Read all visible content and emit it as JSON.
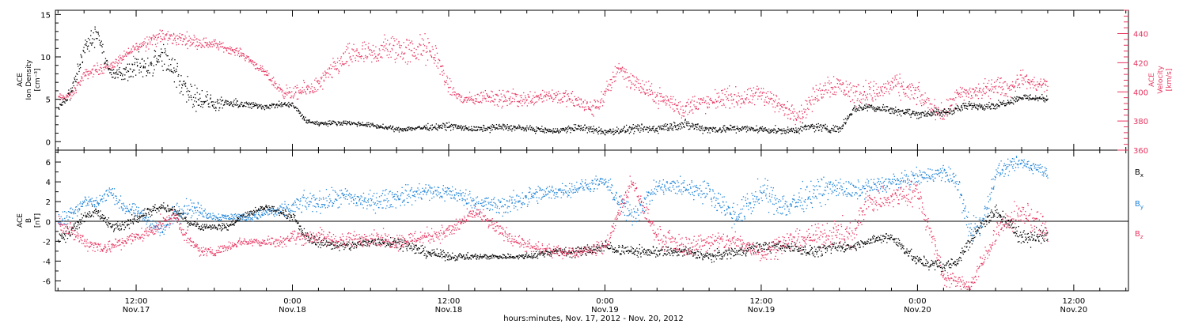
{
  "colors": {
    "black": "#000000",
    "pink": "#e8345f",
    "blue": "#1d83d8"
  },
  "xaxis": {
    "caption": "hours:minutes, Nov. 17, 2012 - Nov. 20, 2012",
    "ticks": [
      {
        "time": "12:00",
        "date": "Nov.17",
        "hours": 12
      },
      {
        "time": "0:00",
        "date": "Nov.18",
        "hours": 24
      },
      {
        "time": "12:00",
        "date": "Nov.18",
        "hours": 36
      },
      {
        "time": "0:00",
        "date": "Nov.19",
        "hours": 48
      },
      {
        "time": "12:00",
        "date": "Nov.19",
        "hours": 60
      },
      {
        "time": "0:00",
        "date": "Nov.20",
        "hours": 72
      },
      {
        "time": "12:00",
        "date": "Nov.20",
        "hours": 84
      }
    ]
  },
  "chart_data": [
    {
      "type": "scatter",
      "panel": "top",
      "xlim_hours": [
        5.8,
        88.2
      ],
      "ylabel_left": [
        "ACE",
        "Ion Density",
        "[cm⁻³]"
      ],
      "ylabel_right": [
        "ACE",
        "Velocity",
        "[km/s]"
      ],
      "left_axis": {
        "ylim": [
          -1,
          15.5
        ],
        "ticks": [
          0,
          5,
          10,
          15
        ]
      },
      "right_axis": {
        "ylim": [
          360,
          456
        ],
        "ticks": [
          360,
          380,
          400,
          420,
          440
        ]
      },
      "series": [
        {
          "name": "",
          "color": "black",
          "axis": "left",
          "x": [
            6,
            7,
            8,
            9,
            10,
            11,
            12,
            13,
            14,
            15,
            16,
            17,
            18,
            19,
            20,
            21,
            22,
            23,
            24,
            25,
            26,
            28,
            30,
            32,
            34,
            36,
            38,
            40,
            42,
            44,
            46,
            48,
            50,
            52,
            54,
            56,
            58,
            60,
            62,
            64,
            66,
            67,
            68,
            70,
            72,
            74,
            76,
            78,
            80,
            82
          ],
          "y": [
            4,
            6,
            11,
            13,
            8,
            8,
            9,
            9,
            10,
            8,
            6,
            5,
            4.5,
            4.5,
            4.5,
            4.3,
            4.2,
            4.4,
            4.4,
            2.5,
            2.2,
            2.3,
            2,
            1.5,
            1.7,
            1.9,
            1.5,
            1.8,
            1.6,
            1.3,
            1.7,
            1.2,
            1.5,
            1.6,
            2.1,
            1.5,
            1.6,
            1.5,
            1.3,
            1.8,
            1.5,
            3.8,
            4.2,
            3.8,
            3.3,
            3.5,
            4.3,
            4.3,
            5.3,
            5.1
          ],
          "spread": [
            0.6,
            1.2,
            2,
            1.5,
            1.2,
            1.5,
            2,
            2.2,
            2.5,
            3,
            2.5,
            2,
            1.2,
            0.8,
            0.7,
            0.6,
            0.5,
            0.5,
            0.5,
            0.5,
            0.4,
            0.4,
            0.4,
            0.4,
            0.5,
            0.6,
            0.5,
            0.6,
            0.5,
            0.5,
            0.7,
            0.6,
            0.7,
            0.8,
            0.9,
            0.7,
            0.7,
            0.6,
            0.6,
            0.8,
            0.6,
            0.6,
            0.7,
            0.7,
            0.7,
            0.7,
            0.7,
            0.6,
            0.6,
            0.6
          ]
        },
        {
          "name": "",
          "color": "pink",
          "axis": "right",
          "x": [
            6,
            7,
            8,
            9,
            10,
            11,
            12,
            13,
            14,
            15,
            16,
            17,
            18,
            19,
            20,
            21,
            22,
            23,
            24,
            25,
            26,
            27,
            28,
            29,
            30,
            31,
            32,
            33,
            34,
            35,
            36,
            37,
            38,
            39,
            40,
            41,
            42,
            43,
            44,
            45,
            46,
            47,
            48,
            49,
            50,
            51,
            52,
            53,
            54,
            55,
            56,
            57,
            58,
            59,
            60,
            61,
            62,
            63,
            64,
            65,
            66,
            67,
            68,
            69,
            70,
            71,
            72,
            73,
            74,
            75,
            76,
            77,
            78,
            79,
            80,
            81,
            82
          ],
          "y": [
            396,
            398,
            412,
            416,
            418,
            424,
            431,
            436,
            438,
            437,
            436,
            434,
            433,
            430,
            427,
            420,
            412,
            402,
            398,
            402,
            405,
            415,
            423,
            427,
            425,
            430,
            430,
            428,
            430,
            425,
            403,
            395,
            395,
            398,
            395,
            396,
            395,
            398,
            398,
            396,
            393,
            388,
            398,
            418,
            408,
            402,
            397,
            393,
            388,
            393,
            392,
            397,
            396,
            395,
            400,
            393,
            387,
            385,
            396,
            405,
            405,
            399,
            400,
            400,
            405,
            402,
            398,
            390,
            385,
            397,
            400,
            401,
            405,
            402,
            410,
            405,
            405
          ],
          "spread": [
            4,
            4,
            5,
            6,
            5,
            5,
            6,
            8,
            8,
            7,
            7,
            6,
            5,
            4,
            4,
            4,
            4,
            6,
            8,
            8,
            9,
            10,
            12,
            14,
            12,
            14,
            16,
            14,
            16,
            12,
            8,
            6,
            6,
            8,
            8,
            9,
            8,
            8,
            8,
            8,
            9,
            8,
            10,
            10,
            10,
            9,
            9,
            10,
            10,
            10,
            9,
            10,
            10,
            10,
            10,
            11,
            9,
            9,
            11,
            12,
            12,
            12,
            12,
            11,
            11,
            12,
            11,
            9,
            9,
            10,
            10,
            10,
            9,
            9,
            8,
            8,
            8
          ]
        }
      ]
    },
    {
      "type": "scatter",
      "panel": "bottom",
      "xlim_hours": [
        5.8,
        88.2
      ],
      "ylabel_left": [
        "ACE",
        "B",
        "[nT]"
      ],
      "ylim": [
        -7,
        7.2
      ],
      "ticks": [
        -6,
        -4,
        -2,
        0,
        2,
        4,
        6
      ],
      "legend": [
        "Bx",
        "By",
        "Bz"
      ],
      "legend_position": "right",
      "series": [
        {
          "name": "Bx",
          "color": "black",
          "x": [
            6,
            7,
            8,
            9,
            10,
            11,
            12,
            13,
            14,
            15,
            16,
            17,
            18,
            19,
            20,
            21,
            22,
            23,
            24,
            25,
            26,
            28,
            30,
            32,
            34,
            36,
            38,
            40,
            42,
            44,
            46,
            48,
            50,
            52,
            54,
            56,
            58,
            60,
            62,
            64,
            66,
            67,
            68,
            70,
            72,
            74,
            75,
            76,
            77,
            78,
            80,
            82
          ],
          "y": [
            -1.5,
            -1,
            0.5,
            1,
            -0.5,
            -0.5,
            0.5,
            1,
            1.5,
            1,
            0,
            -0.5,
            -0.5,
            -0.5,
            0.5,
            1,
            1.5,
            1,
            0.5,
            -1.5,
            -2,
            -2.5,
            -2,
            -2,
            -3,
            -3.5,
            -3.5,
            -3.5,
            -3.5,
            -3,
            -3,
            -2.5,
            -3,
            -3,
            -3,
            -3.5,
            -3,
            -2.5,
            -2.5,
            -3,
            -2.5,
            -2.5,
            -2,
            -1.5,
            -4,
            -4.5,
            -4,
            -2,
            0,
            1,
            -1.5,
            -1.5
          ],
          "spread": [
            1,
            1,
            1,
            0.8,
            0.8,
            0.8,
            0.8,
            0.8,
            0.6,
            0.6,
            0.6,
            0.5,
            0.5,
            0.5,
            0.5,
            0.5,
            0.5,
            0.5,
            0.6,
            0.8,
            0.8,
            0.8,
            0.8,
            0.8,
            0.8,
            0.6,
            0.4,
            0.4,
            0.5,
            0.6,
            0.8,
            0.8,
            0.8,
            0.8,
            0.8,
            0.8,
            0.8,
            0.8,
            0.8,
            0.8,
            0.8,
            0.6,
            0.6,
            0.8,
            0.8,
            0.8,
            0.8,
            1,
            1,
            1,
            1.2,
            1.2
          ]
        },
        {
          "name": "By",
          "color": "blue",
          "x": [
            6,
            7,
            8,
            9,
            10,
            11,
            12,
            13,
            14,
            15,
            16,
            17,
            18,
            19,
            20,
            21,
            22,
            23,
            24,
            25,
            26,
            28,
            30,
            32,
            34,
            36,
            38,
            40,
            42,
            44,
            46,
            48,
            50,
            52,
            54,
            56,
            58,
            60,
            62,
            64,
            66,
            67,
            68,
            70,
            72,
            74,
            75,
            76,
            77,
            78,
            80,
            82
          ],
          "y": [
            0,
            1,
            2,
            2,
            3,
            1.5,
            1,
            0,
            -1,
            1,
            1.5,
            1,
            0.5,
            0.5,
            0.5,
            0.5,
            1,
            1,
            1.5,
            2,
            2,
            2.5,
            2,
            2.5,
            3,
            3,
            2,
            1.5,
            2.5,
            3,
            3.5,
            4,
            0.5,
            3.5,
            3.5,
            3,
            0.5,
            3,
            1.5,
            3,
            3.5,
            3,
            3.5,
            4,
            4.5,
            5,
            4,
            -1,
            0,
            5,
            6,
            5
          ],
          "spread": [
            1.2,
            1.2,
            1,
            1.2,
            1,
            1,
            1,
            1,
            1,
            1.5,
            1.5,
            1,
            0.6,
            0.6,
            0.6,
            0.6,
            0.8,
            1,
            1.2,
            1.5,
            1.5,
            1.5,
            1.5,
            1.5,
            1.5,
            1.2,
            1.5,
            1.5,
            1.5,
            1.2,
            1,
            1,
            2,
            1.2,
            1.5,
            1.5,
            2,
            2,
            2,
            2,
            1.5,
            1.5,
            1.2,
            1.2,
            1.2,
            1.2,
            1.5,
            2,
            2,
            1.2,
            1,
            1
          ]
        },
        {
          "name": "Bz",
          "color": "pink",
          "x": [
            6,
            7,
            8,
            9,
            10,
            11,
            12,
            13,
            14,
            15,
            16,
            17,
            18,
            19,
            20,
            21,
            22,
            23,
            24,
            25,
            26,
            28,
            30,
            32,
            34,
            36,
            38,
            40,
            42,
            44,
            46,
            48,
            50,
            52,
            54,
            56,
            58,
            60,
            62,
            64,
            66,
            67,
            68,
            70,
            72,
            74,
            75,
            76,
            77,
            78,
            80,
            82
          ],
          "y": [
            0,
            -1,
            -2,
            -2.5,
            -2.5,
            -2,
            -1.5,
            -1,
            0,
            0.5,
            -2,
            -3,
            -3,
            -2.5,
            -2,
            -2,
            -2,
            -2,
            -1.5,
            -1.5,
            -1.5,
            -2,
            -1.5,
            -2,
            -1.5,
            -1,
            1,
            -1,
            -2.5,
            -3,
            -3,
            -2.5,
            4,
            -1.5,
            -2.5,
            -2,
            -2,
            -3,
            -2,
            -1.5,
            -1,
            -1.5,
            2,
            2.5,
            3,
            -5.5,
            -6,
            -6.5,
            -4,
            -1,
            1,
            -1
          ],
          "spread": [
            1.2,
            1.2,
            1,
            1,
            1,
            1,
            1,
            1,
            1,
            1,
            1,
            0.8,
            0.6,
            0.6,
            0.6,
            0.6,
            0.8,
            0.8,
            1,
            1.2,
            1.2,
            1.2,
            1.2,
            1.2,
            1.2,
            1.2,
            1,
            1,
            1,
            0.8,
            0.8,
            1,
            1.2,
            1.5,
            1.5,
            1.5,
            1.5,
            1.5,
            1.5,
            1.5,
            2,
            2,
            2,
            2,
            2,
            1.2,
            1,
            1,
            1.5,
            1.5,
            2,
            2
          ]
        }
      ]
    }
  ]
}
